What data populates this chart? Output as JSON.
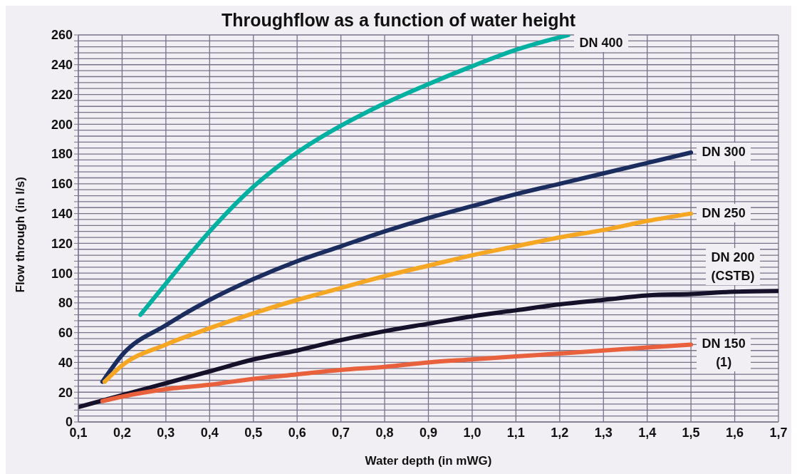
{
  "chart_data": {
    "type": "line",
    "title": "Throughflow as a function of water height",
    "xlabel": "Water depth (in mWG)",
    "ylabel": "Flow through (in l/s)",
    "xlim": [
      0.1,
      1.7
    ],
    "xticks": [
      {
        "value": 0.1,
        "label": "0,1"
      },
      {
        "value": 0.2,
        "label": "0,2"
      },
      {
        "value": 0.3,
        "label": "0,3"
      },
      {
        "value": 0.4,
        "label": "0,4"
      },
      {
        "value": 0.5,
        "label": "0,5"
      },
      {
        "value": 0.6,
        "label": "0,6"
      },
      {
        "value": 0.7,
        "label": "0,7"
      },
      {
        "value": 0.8,
        "label": "0,8"
      },
      {
        "value": 0.9,
        "label": "0,9"
      },
      {
        "value": 1.0,
        "label": "1,0"
      },
      {
        "value": 1.1,
        "label": "1,1"
      },
      {
        "value": 1.2,
        "label": "1,2"
      },
      {
        "value": 1.3,
        "label": "1,3"
      },
      {
        "value": 1.4,
        "label": "1,4"
      },
      {
        "value": 1.5,
        "label": "1,5"
      },
      {
        "value": 1.6,
        "label": "1,6"
      },
      {
        "value": 1.7,
        "label": "1,7"
      }
    ],
    "ylim": [
      0,
      260
    ],
    "yticks": [
      0,
      {
        "value": 4,
        "label": null
      },
      {
        "value": 8,
        "label": null
      },
      {
        "value": 12,
        "label": null
      },
      {
        "value": 16,
        "label": null
      },
      20,
      {
        "value": 24,
        "label": null
      },
      {
        "value": 28,
        "label": null
      },
      {
        "value": 32,
        "label": null
      },
      {
        "value": 36,
        "label": null
      },
      40,
      {
        "value": 44,
        "label": null
      },
      {
        "value": 48,
        "label": null
      },
      {
        "value": 52,
        "label": null
      },
      {
        "value": 56,
        "label": null
      },
      60,
      {
        "value": 64,
        "label": null
      },
      {
        "value": 68,
        "label": null
      },
      {
        "value": 72,
        "label": null
      },
      {
        "value": 76,
        "label": null
      },
      80,
      {
        "value": 84,
        "label": null
      },
      {
        "value": 88,
        "label": null
      },
      {
        "value": 92,
        "label": null
      },
      {
        "value": 96,
        "label": null
      },
      100,
      {
        "value": 104,
        "label": null
      },
      {
        "value": 108,
        "label": null
      },
      {
        "value": 112,
        "label": null
      },
      {
        "value": 116,
        "label": null
      },
      120,
      {
        "value": 124,
        "label": null
      },
      {
        "value": 128,
        "label": null
      },
      {
        "value": 132,
        "label": null
      },
      {
        "value": 136,
        "label": null
      },
      140,
      {
        "value": 144,
        "label": null
      },
      {
        "value": 148,
        "label": null
      },
      {
        "value": 152,
        "label": null
      },
      {
        "value": 156,
        "label": null
      },
      160,
      {
        "value": 164,
        "label": null
      },
      {
        "value": 168,
        "label": null
      },
      {
        "value": 172,
        "label": null
      },
      {
        "value": 176,
        "label": null
      },
      180,
      {
        "value": 184,
        "label": null
      },
      {
        "value": 188,
        "label": null
      },
      {
        "value": 192,
        "label": null
      },
      {
        "value": 196,
        "label": null
      },
      200,
      {
        "value": 204,
        "label": null
      },
      {
        "value": 208,
        "label": null
      },
      {
        "value": 212,
        "label": null
      },
      {
        "value": 216,
        "label": null
      },
      220,
      {
        "value": 224,
        "label": null
      },
      {
        "value": 228,
        "label": null
      },
      {
        "value": 232,
        "label": null
      },
      {
        "value": 236,
        "label": null
      },
      240,
      {
        "value": 244,
        "label": null
      },
      {
        "value": 248,
        "label": null
      },
      {
        "value": 252,
        "label": null
      },
      {
        "value": 256,
        "label": null
      },
      260
    ],
    "grid": true,
    "legend": false,
    "marker": "none",
    "line_style": "solid",
    "series": [
      {
        "name": "DN 400",
        "color": "#00b0a0",
        "x": [
          0.242,
          0.3,
          0.4,
          0.5,
          0.6,
          0.7,
          0.8,
          0.9,
          1.0,
          1.1,
          1.22
        ],
        "values": [
          72,
          93,
          128,
          158,
          181,
          199,
          214,
          227,
          239,
          250,
          260
        ]
      },
      {
        "name": "DN 300",
        "color": "#1a2d5e",
        "x": [
          0.155,
          0.2,
          0.3,
          0.4,
          0.5,
          0.6,
          0.7,
          0.8,
          0.9,
          1.0,
          1.1,
          1.2,
          1.3,
          1.4,
          1.5
        ],
        "values": [
          27,
          45,
          65,
          82,
          96,
          108,
          118,
          128,
          137,
          145,
          153,
          160,
          167,
          174,
          181
        ]
      },
      {
        "name": "DN 250",
        "color": "#f5a623",
        "x": [
          0.16,
          0.2,
          0.3,
          0.4,
          0.5,
          0.6,
          0.7,
          0.8,
          0.9,
          1.0,
          1.1,
          1.2,
          1.3,
          1.4,
          1.5
        ],
        "values": [
          27,
          38,
          52,
          63,
          73,
          82,
          90,
          98,
          105,
          112,
          118,
          124,
          129,
          135,
          140
        ]
      },
      {
        "name": "DN 200 (CSTB)",
        "color": "#15112a",
        "x": [
          0.1,
          0.2,
          0.3,
          0.4,
          0.5,
          0.6,
          0.7,
          0.8,
          0.9,
          1.0,
          1.1,
          1.2,
          1.3,
          1.4,
          1.5,
          1.6,
          1.7
        ],
        "values": [
          10,
          18,
          26,
          34,
          42,
          48,
          55,
          61,
          66,
          71,
          75,
          79,
          82,
          85,
          86,
          87.5,
          88
        ]
      },
      {
        "name": "DN 150 (1)",
        "color": "#e8603c",
        "x": [
          0.155,
          0.2,
          0.3,
          0.4,
          0.5,
          0.6,
          0.7,
          0.8,
          0.9,
          1.0,
          1.1,
          1.2,
          1.3,
          1.4,
          1.5
        ],
        "values": [
          14,
          17,
          22,
          25,
          29,
          32,
          35,
          37,
          40,
          42,
          44,
          46,
          48,
          50,
          52
        ]
      }
    ]
  }
}
